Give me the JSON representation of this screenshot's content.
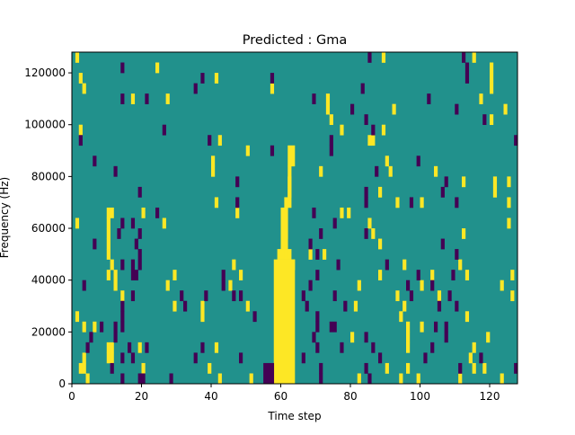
{
  "chart_data": {
    "type": "heatmap",
    "title": "Predicted : Gma",
    "xlabel": "Time step",
    "ylabel": "Frequency (Hz)",
    "xlim": [
      0,
      128
    ],
    "ylim": [
      0,
      128000
    ],
    "xticks": [
      "0",
      "20",
      "40",
      "60",
      "80",
      "100",
      "120"
    ],
    "xtick_values": [
      0,
      20,
      40,
      60,
      80,
      100,
      120
    ],
    "yticks": [
      "0",
      "20000",
      "40000",
      "60000",
      "80000",
      "100000",
      "120000"
    ],
    "ytick_values": [
      0,
      20000,
      40000,
      60000,
      80000,
      100000,
      120000
    ],
    "freq_bin_hz": 4000,
    "value_colors": {
      "0": "#21918c",
      "1": "#fde725",
      "-1": "#440154"
    },
    "background_value": 0,
    "yellow_cells": [
      [
        1,
        31
      ],
      [
        89,
        31
      ],
      [
        115,
        31
      ],
      [
        24,
        30
      ],
      [
        120,
        30
      ],
      [
        2,
        29
      ],
      [
        41,
        29
      ],
      [
        120,
        29
      ],
      [
        3,
        28
      ],
      [
        57,
        28
      ],
      [
        120,
        28
      ],
      [
        17,
        27
      ],
      [
        27,
        27
      ],
      [
        73,
        27
      ],
      [
        117,
        27
      ],
      [
        73,
        26
      ],
      [
        92,
        26
      ],
      [
        124,
        26
      ],
      [
        74,
        25
      ],
      [
        120,
        25
      ],
      [
        2,
        24
      ],
      [
        77,
        24
      ],
      [
        89,
        24
      ],
      [
        42,
        23
      ],
      [
        85,
        23
      ],
      [
        86,
        23
      ],
      [
        50,
        22
      ],
      [
        40,
        21
      ],
      [
        90,
        21
      ],
      [
        40,
        20
      ],
      [
        71,
        20
      ],
      [
        91,
        20
      ],
      [
        104,
        20
      ],
      [
        62,
        19
      ],
      [
        112,
        19
      ],
      [
        125,
        19
      ],
      [
        121,
        19
      ],
      [
        62,
        18
      ],
      [
        88,
        18
      ],
      [
        121,
        18
      ],
      [
        41,
        17
      ],
      [
        61,
        17
      ],
      [
        93,
        17
      ],
      [
        100,
        17
      ],
      [
        125,
        17
      ],
      [
        10,
        16
      ],
      [
        11,
        16
      ],
      [
        20,
        16
      ],
      [
        47,
        16
      ],
      [
        61,
        16
      ],
      [
        77,
        16
      ],
      [
        79,
        16
      ],
      [
        1,
        15
      ],
      [
        10,
        15
      ],
      [
        26,
        15
      ],
      [
        61,
        15
      ],
      [
        85,
        15
      ],
      [
        125,
        15
      ],
      [
        10,
        14
      ],
      [
        61,
        14
      ],
      [
        86,
        14
      ],
      [
        112,
        14
      ],
      [
        10,
        13
      ],
      [
        60,
        13
      ],
      [
        88,
        13
      ],
      [
        10,
        12
      ],
      [
        61,
        12
      ],
      [
        68,
        12
      ],
      [
        72,
        12
      ],
      [
        11,
        11
      ],
      [
        46,
        11
      ],
      [
        63,
        11
      ],
      [
        95,
        11
      ],
      [
        111,
        11
      ],
      [
        10,
        10
      ],
      [
        12,
        10
      ],
      [
        29,
        10
      ],
      [
        48,
        10
      ],
      [
        88,
        10
      ],
      [
        103,
        10
      ],
      [
        113,
        10
      ],
      [
        126,
        10
      ],
      [
        12,
        9
      ],
      [
        27,
        9
      ],
      [
        45,
        9
      ],
      [
        82,
        9
      ],
      [
        100,
        9
      ],
      [
        123,
        9
      ],
      [
        14,
        8
      ],
      [
        93,
        8
      ],
      [
        105,
        8
      ],
      [
        126,
        8
      ],
      [
        29,
        7
      ],
      [
        37,
        7
      ],
      [
        50,
        7
      ],
      [
        81,
        7
      ],
      [
        95,
        7
      ],
      [
        1,
        6
      ],
      [
        37,
        6
      ],
      [
        94,
        6
      ],
      [
        113,
        6
      ],
      [
        3,
        5
      ],
      [
        6,
        5
      ],
      [
        96,
        5
      ],
      [
        100,
        5
      ],
      [
        80,
        4
      ],
      [
        96,
        4
      ],
      [
        119,
        4
      ],
      [
        10,
        3
      ],
      [
        11,
        3
      ],
      [
        19,
        3
      ],
      [
        41,
        3
      ],
      [
        96,
        3
      ],
      [
        115,
        3
      ],
      [
        3,
        2
      ],
      [
        10,
        2
      ],
      [
        11,
        2
      ],
      [
        114,
        2
      ],
      [
        2,
        1
      ],
      [
        3,
        1
      ],
      [
        20,
        1
      ],
      [
        39,
        1
      ],
      [
        90,
        1
      ],
      [
        96,
        1
      ],
      [
        115,
        1
      ],
      [
        118,
        1
      ],
      [
        42,
        0
      ],
      [
        51,
        0
      ],
      [
        94,
        0
      ],
      [
        111,
        0
      ],
      [
        123,
        0
      ],
      [
        4,
        0
      ],
      [
        82,
        0
      ],
      [
        99,
        0
      ]
    ],
    "yellow_runs": [
      [
        58,
        63,
        0,
        11
      ],
      [
        59,
        62,
        12,
        12
      ],
      [
        60,
        61,
        13,
        16
      ],
      [
        62,
        62,
        17,
        20
      ],
      [
        62,
        63,
        21,
        22
      ]
    ],
    "purple_cells": [
      [
        85,
        31
      ],
      [
        112,
        31
      ],
      [
        14,
        30
      ],
      [
        113,
        30
      ],
      [
        37,
        29
      ],
      [
        57,
        29
      ],
      [
        113,
        29
      ],
      [
        35,
        28
      ],
      [
        83,
        28
      ],
      [
        14,
        27
      ],
      [
        21,
        27
      ],
      [
        69,
        27
      ],
      [
        102,
        27
      ],
      [
        80,
        26
      ],
      [
        110,
        26
      ],
      [
        84,
        25
      ],
      [
        118,
        25
      ],
      [
        26,
        24
      ],
      [
        86,
        24
      ],
      [
        2,
        23
      ],
      [
        39,
        23
      ],
      [
        74,
        23
      ],
      [
        127,
        23
      ],
      [
        74,
        22
      ],
      [
        57,
        22
      ],
      [
        6,
        21
      ],
      [
        99,
        21
      ],
      [
        12,
        20
      ],
      [
        87,
        20
      ],
      [
        47,
        19
      ],
      [
        107,
        19
      ],
      [
        19,
        18
      ],
      [
        84,
        18
      ],
      [
        106,
        18
      ],
      [
        47,
        17
      ],
      [
        84,
        17
      ],
      [
        97,
        17
      ],
      [
        110,
        17
      ],
      [
        24,
        16
      ],
      [
        69,
        16
      ],
      [
        14,
        15
      ],
      [
        17,
        15
      ],
      [
        75,
        15
      ],
      [
        13,
        14
      ],
      [
        19,
        14
      ],
      [
        71,
        14
      ],
      [
        84,
        14
      ],
      [
        6,
        13
      ],
      [
        18,
        13
      ],
      [
        68,
        13
      ],
      [
        106,
        13
      ],
      [
        19,
        12
      ],
      [
        70,
        12
      ],
      [
        110,
        12
      ],
      [
        14,
        11
      ],
      [
        17,
        11
      ],
      [
        19,
        11
      ],
      [
        76,
        11
      ],
      [
        90,
        11
      ],
      [
        17,
        10
      ],
      [
        18,
        10
      ],
      [
        43,
        10
      ],
      [
        70,
        10
      ],
      [
        99,
        10
      ],
      [
        109,
        10
      ],
      [
        3,
        9
      ],
      [
        43,
        9
      ],
      [
        68,
        9
      ],
      [
        96,
        9
      ],
      [
        103,
        9
      ],
      [
        17,
        8
      ],
      [
        31,
        8
      ],
      [
        38,
        8
      ],
      [
        46,
        8
      ],
      [
        48,
        8
      ],
      [
        66,
        8
      ],
      [
        75,
        8
      ],
      [
        97,
        8
      ],
      [
        108,
        8
      ],
      [
        14,
        7
      ],
      [
        32,
        7
      ],
      [
        67,
        7
      ],
      [
        78,
        7
      ],
      [
        105,
        7
      ],
      [
        110,
        7
      ],
      [
        14,
        6
      ],
      [
        52,
        6
      ],
      [
        70,
        6
      ],
      [
        8,
        5
      ],
      [
        12,
        5
      ],
      [
        14,
        5
      ],
      [
        70,
        5
      ],
      [
        74,
        5
      ],
      [
        75,
        5
      ],
      [
        104,
        5
      ],
      [
        107,
        5
      ],
      [
        5,
        4
      ],
      [
        12,
        4
      ],
      [
        69,
        4
      ],
      [
        84,
        4
      ],
      [
        107,
        4
      ],
      [
        4,
        3
      ],
      [
        16,
        3
      ],
      [
        21,
        3
      ],
      [
        37,
        3
      ],
      [
        70,
        3
      ],
      [
        77,
        3
      ],
      [
        86,
        3
      ],
      [
        103,
        3
      ],
      [
        14,
        2
      ],
      [
        17,
        2
      ],
      [
        35,
        2
      ],
      [
        48,
        2
      ],
      [
        66,
        2
      ],
      [
        88,
        2
      ],
      [
        101,
        2
      ],
      [
        117,
        2
      ],
      [
        11,
        1
      ],
      [
        71,
        1
      ],
      [
        84,
        1
      ],
      [
        111,
        1
      ],
      [
        127,
        1
      ],
      [
        14,
        0
      ],
      [
        20,
        0
      ],
      [
        19,
        0
      ],
      [
        28,
        0
      ],
      [
        71,
        0
      ],
      [
        85,
        0
      ]
    ],
    "purple_runs": [
      [
        55,
        57,
        0,
        1
      ]
    ]
  }
}
